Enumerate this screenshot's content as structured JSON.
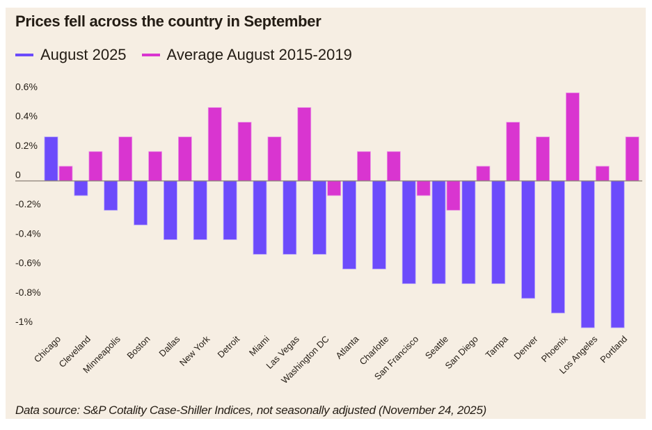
{
  "colors": {
    "background": "#f6eee3",
    "series_2025": "#6c4bfb",
    "series_avg": "#d935d0",
    "axis": "#8a7f74",
    "text": "#231c14"
  },
  "chart_data": {
    "type": "bar",
    "title": "Prices fell across the country in September",
    "xlabel": "",
    "ylabel": "",
    "ylim": [
      -1.0,
      0.6
    ],
    "yticks": [
      0.6,
      0.4,
      0.2,
      0,
      -0.2,
      -0.4,
      -0.6,
      -0.8,
      -1
    ],
    "ytick_labels": [
      "0.6%",
      "0.4%",
      "0.2%",
      "0",
      "-0.2%",
      "-0.4%",
      "-0.6%",
      "-0.8%",
      "-1%"
    ],
    "grid": false,
    "legend_position": "top-left",
    "categories": [
      "Chicago",
      "Cleveland",
      "Minneapolis",
      "Boston",
      "Dallas",
      "New York",
      "Detroit",
      "Miami",
      "Las Vegas",
      "Washington DC",
      "Atlanta",
      "Charlotte",
      "San Francisco",
      "Seattle",
      "San Diego",
      "Tampa",
      "Denver",
      "Phoenix",
      "Los Angeles",
      "Portland"
    ],
    "series": [
      {
        "name": "August 2025",
        "color": "#6c4bfb",
        "values": [
          0.3,
          -0.1,
          -0.2,
          -0.3,
          -0.4,
          -0.4,
          -0.4,
          -0.5,
          -0.5,
          -0.5,
          -0.6,
          -0.6,
          -0.7,
          -0.7,
          -0.7,
          -0.7,
          -0.8,
          -0.9,
          -1.0,
          -1.0
        ]
      },
      {
        "name": "Average August 2015-2019",
        "color": "#d935d0",
        "values": [
          0.1,
          0.2,
          0.3,
          0.2,
          0.3,
          0.5,
          0.4,
          0.3,
          0.5,
          -0.1,
          0.2,
          0.2,
          -0.1,
          -0.2,
          0.1,
          0.4,
          0.3,
          0.6,
          0.1,
          0.3
        ]
      }
    ],
    "footnote": "Data source: S&P Cotality Case-Shiller Indices, not seasonally adjusted (November 24, 2025)"
  }
}
